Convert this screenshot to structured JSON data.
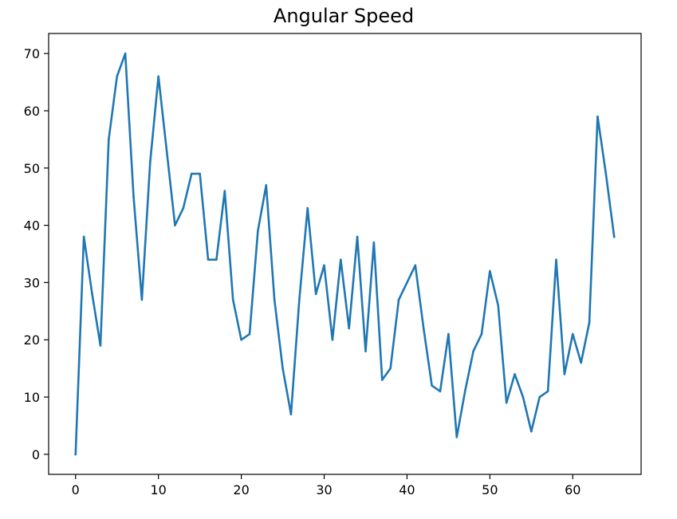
{
  "chart_data": {
    "type": "line",
    "title": "Angular Speed",
    "xlabel": "",
    "ylabel": "",
    "xlim": [
      -3.25,
      68.25
    ],
    "ylim": [
      -3.5,
      73.5
    ],
    "xticks": [
      0,
      10,
      20,
      30,
      40,
      50,
      60
    ],
    "yticks": [
      0,
      10,
      20,
      30,
      40,
      50,
      60,
      70
    ],
    "grid": false,
    "color": "#1f77b4",
    "x": [
      0,
      1,
      2,
      3,
      4,
      5,
      6,
      7,
      8,
      9,
      10,
      11,
      12,
      13,
      14,
      15,
      16,
      17,
      18,
      19,
      20,
      21,
      22,
      23,
      24,
      25,
      26,
      27,
      28,
      29,
      30,
      31,
      32,
      33,
      34,
      35,
      36,
      37,
      38,
      39,
      40,
      41,
      42,
      43,
      44,
      45,
      46,
      47,
      48,
      49,
      50,
      51,
      52,
      53,
      54,
      55,
      56,
      57,
      58,
      59,
      60,
      61,
      62,
      63,
      64,
      65
    ],
    "y": [
      0,
      38,
      28,
      19,
      55,
      66,
      70,
      45,
      27,
      51,
      66,
      53,
      40,
      43,
      49,
      49,
      34,
      34,
      46,
      27,
      20,
      21,
      39,
      47,
      27,
      15,
      7,
      27,
      43,
      28,
      33,
      20,
      34,
      22,
      38,
      18,
      37,
      13,
      15,
      27,
      30,
      33,
      22,
      12,
      11,
      21,
      3,
      11,
      18,
      21,
      32,
      26,
      9,
      14,
      10,
      4,
      10,
      11,
      34,
      14,
      21,
      16,
      23,
      59,
      49,
      38
    ]
  }
}
